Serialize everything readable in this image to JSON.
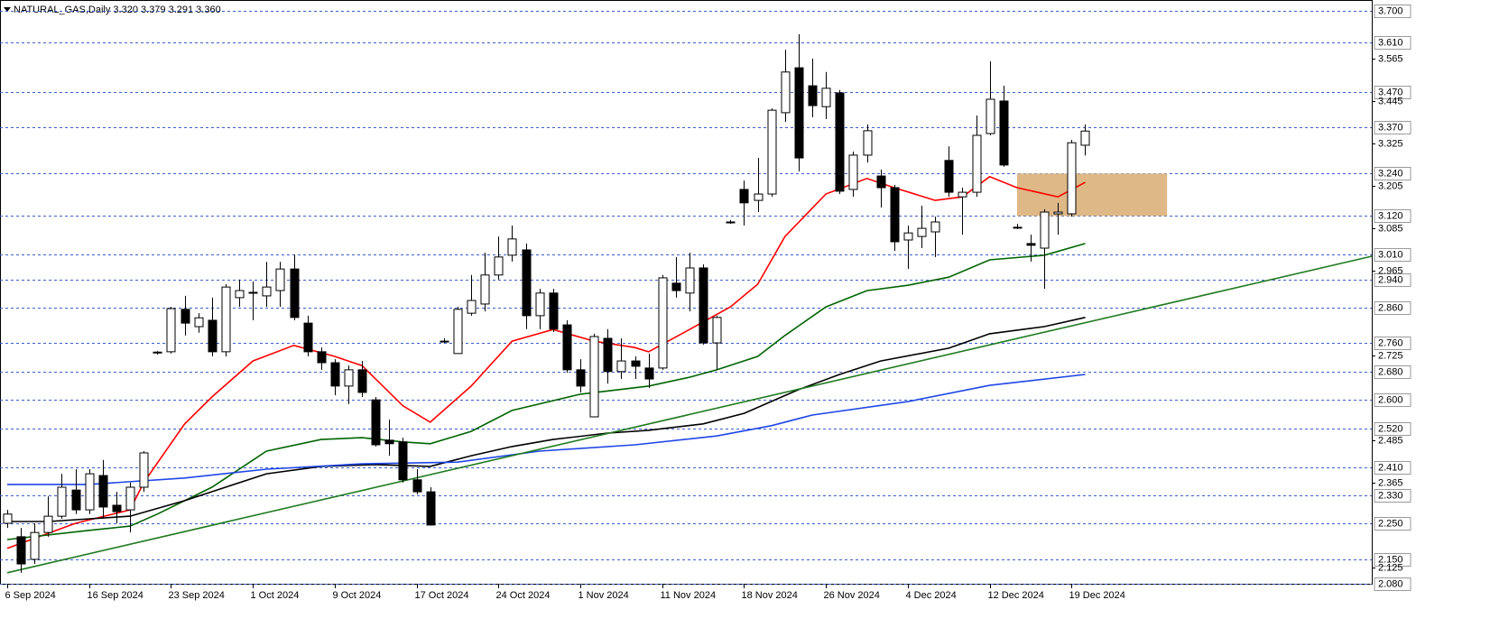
{
  "chart_data": {
    "type": "candlestick",
    "title": "NATURAL_GAS,Daily 3.320 3.379 3.291 3.360",
    "categories": [
      "6 Sep 2024",
      null,
      null,
      null,
      null,
      null,
      "16 Sep 2024",
      null,
      null,
      null,
      null,
      null,
      "23 Sep 2024",
      null,
      null,
      null,
      null,
      null,
      "1 Oct 2024",
      null,
      null,
      null,
      null,
      null,
      "9 Oct 2024",
      null,
      null,
      null,
      null,
      null,
      "17 Oct 2024",
      null,
      null,
      null,
      null,
      null,
      "24 Oct 2024",
      null,
      null,
      null,
      null,
      null,
      "1 Nov 2024",
      null,
      null,
      null,
      null,
      null,
      "11 Nov 2024",
      null,
      null,
      null,
      null,
      null,
      "18 Nov 2024",
      null,
      null,
      null,
      null,
      null,
      "26 Nov 2024",
      null,
      null,
      null,
      null,
      null,
      "4 Dec 2024",
      null,
      null,
      null,
      null,
      null,
      "12 Dec 2024",
      null,
      null,
      null,
      null,
      null,
      "19 Dec 2024",
      null
    ],
    "open": [
      2.251,
      2.213,
      2.149,
      2.225,
      2.271,
      2.345,
      2.289,
      2.386,
      2.302,
      2.289,
      2.353,
      2.733,
      2.736,
      2.856,
      2.807,
      2.825,
      2.736,
      2.889,
      2.902,
      2.894,
      2.909,
      2.97,
      2.817,
      2.736,
      2.705,
      2.639,
      2.685,
      2.6,
      2.486,
      2.481,
      2.374,
      2.34,
      2.766,
      2.731,
      2.845,
      2.871,
      2.953,
      3.009,
      3.024,
      2.838,
      2.902,
      2.812,
      2.685,
      2.552,
      2.774,
      2.68,
      2.71,
      2.69,
      2.69,
      2.93,
      2.902,
      2.973,
      2.761,
      3.103,
      3.195,
      3.164,
      3.182,
      3.412,
      3.539,
      3.488,
      3.429,
      3.468,
      3.195,
      3.292,
      3.233,
      3.2,
      3.052,
      3.062,
      3.075,
      3.277,
      3.174,
      3.187,
      3.353,
      3.445,
      3.088,
      3.042,
      3.029,
      3.126,
      3.126,
      3.32
    ],
    "high": [
      2.289,
      2.238,
      2.251,
      2.327,
      2.391,
      2.404,
      2.404,
      2.43,
      2.34,
      2.366,
      2.455,
      2.738,
      2.863,
      2.894,
      2.845,
      2.889,
      2.927,
      2.94,
      2.935,
      2.99,
      2.99,
      3.011,
      2.838,
      2.748,
      2.715,
      2.697,
      2.71,
      2.608,
      2.544,
      2.493,
      2.404,
      2.353,
      2.774,
      2.863,
      2.953,
      3.016,
      3.062,
      3.093,
      3.042,
      2.914,
      2.914,
      2.825,
      2.715,
      2.787,
      2.8,
      2.774,
      2.723,
      2.731,
      2.953,
      3.004,
      3.016,
      2.983,
      2.838,
      3.108,
      3.22,
      3.284,
      3.424,
      3.59,
      3.634,
      3.565,
      3.527,
      3.476,
      3.302,
      3.379,
      3.251,
      3.208,
      3.093,
      3.149,
      3.118,
      3.317,
      3.2,
      3.404,
      3.557,
      3.488,
      3.098,
      3.067,
      3.139,
      3.157,
      3.335,
      3.379
    ],
    "low": [
      2.238,
      2.111,
      2.136,
      2.213,
      2.264,
      2.277,
      2.277,
      2.264,
      2.251,
      2.225,
      2.34,
      2.728,
      2.731,
      2.782,
      2.79,
      2.723,
      2.723,
      2.863,
      2.825,
      2.863,
      2.863,
      2.825,
      2.723,
      2.685,
      2.613,
      2.588,
      2.608,
      2.468,
      2.442,
      2.366,
      2.333,
      2.246,
      2.761,
      2.731,
      2.838,
      2.85,
      2.94,
      2.991,
      2.8,
      2.8,
      2.792,
      2.677,
      2.621,
      2.552,
      2.646,
      2.659,
      2.659,
      2.634,
      2.685,
      2.889,
      2.85,
      2.756,
      2.685,
      3.098,
      3.093,
      3.131,
      3.174,
      3.386,
      3.246,
      3.399,
      3.394,
      3.182,
      3.174,
      3.271,
      3.144,
      3.021,
      2.97,
      3.029,
      3.004,
      3.174,
      3.067,
      3.174,
      3.348,
      3.259,
      3.083,
      2.991,
      2.914,
      3.067,
      3.118,
      3.291
    ],
    "close": [
      2.277,
      2.136,
      2.225,
      2.271,
      2.353,
      2.289,
      2.391,
      2.297,
      2.284,
      2.353,
      2.45,
      2.735,
      2.858,
      2.817,
      2.832,
      2.736,
      2.919,
      2.909,
      2.904,
      2.919,
      2.97,
      2.833,
      2.736,
      2.705,
      2.639,
      2.685,
      2.621,
      2.473,
      2.476,
      2.374,
      2.34,
      2.246,
      2.764,
      2.856,
      2.881,
      2.953,
      3.004,
      3.055,
      2.838,
      2.902,
      2.8,
      2.685,
      2.639,
      2.779,
      2.68,
      2.71,
      2.695,
      2.659,
      2.945,
      2.909,
      2.973,
      2.761,
      2.833,
      3.101,
      3.157,
      3.182,
      3.419,
      3.527,
      3.284,
      3.432,
      3.481,
      3.19,
      3.292,
      3.361,
      3.2,
      3.047,
      3.072,
      3.085,
      3.103,
      3.187,
      3.187,
      3.348,
      3.45,
      3.264,
      3.087,
      3.037,
      3.131,
      3.131,
      3.327,
      3.36
    ],
    "up_color": "#ffffff",
    "down_color": "#000000",
    "lines": [
      {
        "color": "#ff0000",
        "x": [
          0,
          5,
          9,
          10,
          13,
          15,
          18,
          21,
          24,
          26,
          29,
          31,
          34,
          37,
          40,
          43,
          46,
          47,
          50,
          53,
          55,
          57,
          60,
          63,
          65,
          68,
          70,
          72,
          74,
          77,
          79
        ],
        "values": [
          2.18,
          2.251,
          2.289,
          2.366,
          2.532,
          2.608,
          2.71,
          2.754,
          2.723,
          2.697,
          2.583,
          2.537,
          2.639,
          2.766,
          2.799,
          2.766,
          2.748,
          2.736,
          2.799,
          2.863,
          2.927,
          3.062,
          3.182,
          3.226,
          3.2,
          3.164,
          3.174,
          3.231,
          3.2,
          3.174,
          3.215
        ]
      },
      {
        "color": "#006400",
        "x": [
          0,
          6,
          9,
          11,
          15,
          19,
          23,
          26,
          29,
          31,
          34,
          37,
          42,
          47,
          50,
          52,
          55,
          57,
          60,
          63,
          66,
          69,
          72,
          76,
          79
        ],
        "values": [
          2.205,
          2.231,
          2.243,
          2.277,
          2.353,
          2.455,
          2.488,
          2.493,
          2.481,
          2.476,
          2.511,
          2.57,
          2.616,
          2.639,
          2.664,
          2.685,
          2.723,
          2.782,
          2.863,
          2.909,
          2.924,
          2.947,
          2.996,
          3.009,
          3.042
        ]
      },
      {
        "color": "#000000",
        "x": [
          0,
          3,
          9,
          13,
          16,
          19,
          23,
          27,
          31,
          34,
          37,
          40,
          44,
          47,
          51,
          54,
          58,
          61,
          64,
          69,
          72,
          76,
          79
        ],
        "values": [
          2.256,
          2.256,
          2.271,
          2.315,
          2.353,
          2.391,
          2.412,
          2.417,
          2.412,
          2.442,
          2.468,
          2.488,
          2.506,
          2.514,
          2.532,
          2.562,
          2.629,
          2.672,
          2.71,
          2.746,
          2.787,
          2.807,
          2.833
        ]
      },
      {
        "color": "#1e46e6",
        "x": [
          0,
          6,
          13,
          19,
          26,
          33,
          39,
          46,
          52,
          56,
          59,
          66,
          72,
          79
        ],
        "values": [
          2.361,
          2.361,
          2.379,
          2.404,
          2.419,
          2.424,
          2.455,
          2.473,
          2.498,
          2.527,
          2.557,
          2.595,
          2.641,
          2.672
        ]
      },
      {
        "color": "#1f7a1f",
        "x": [
          0,
          100
        ],
        "values": [
          2.111,
          3.006
        ]
      }
    ],
    "zone": {
      "x": [
        74,
        85
      ],
      "y": [
        3.12,
        3.24
      ],
      "color": "#deb887"
    },
    "ylim": [
      2.08,
      3.7
    ],
    "yticks": [
      3.565,
      3.445,
      3.325,
      3.205,
      3.085,
      2.965,
      2.725,
      2.485,
      2.365,
      2.125
    ],
    "levels": [
      {
        "value": 3.7,
        "label": "3.700"
      },
      {
        "value": 3.61,
        "label": "3.610"
      },
      {
        "value": 3.47,
        "label": "3.470"
      },
      {
        "value": 3.37,
        "label": "3.370"
      },
      {
        "value": 3.24,
        "label": "3.240"
      },
      {
        "value": 3.12,
        "label": "3.120"
      },
      {
        "value": 3.01,
        "label": "3.010"
      },
      {
        "value": 2.94,
        "label": "2.940"
      },
      {
        "value": 2.86,
        "label": "2.860"
      },
      {
        "value": 2.76,
        "label": "2.760"
      },
      {
        "value": 2.68,
        "label": "2.680"
      },
      {
        "value": 2.6,
        "label": "2.600"
      },
      {
        "value": 2.52,
        "label": "2.520"
      },
      {
        "value": 2.41,
        "label": "2.410"
      },
      {
        "value": 2.33,
        "label": "2.330"
      },
      {
        "value": 2.25,
        "label": "2.250"
      },
      {
        "value": 2.15,
        "label": "2.150"
      },
      {
        "value": 2.08,
        "label": "2.080"
      }
    ],
    "level_color": "#3a5fcd"
  }
}
